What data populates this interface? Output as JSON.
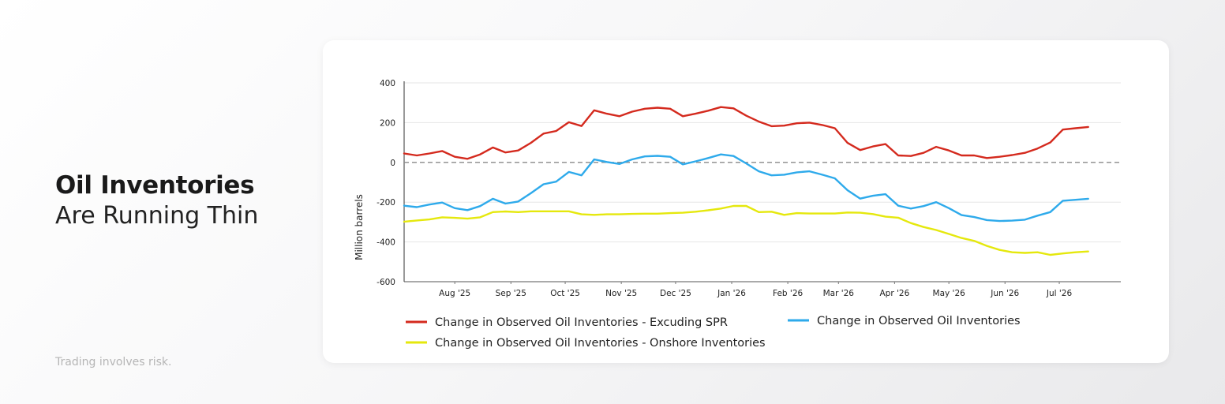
{
  "headline": {
    "bold": "Oil Inventories",
    "light": "Are Running Thin"
  },
  "disclaimer": "Trading involves risk.",
  "chart_data": {
    "type": "line",
    "title": "",
    "xlabel": "",
    "ylabel": "Million barrels",
    "ylim": [
      -600,
      400
    ],
    "yticks": [
      400,
      200,
      0,
      -200,
      -400,
      -600
    ],
    "x_range": [
      "2025-07-04",
      "2026-08-04"
    ],
    "xtick_labels": [
      "Aug '25",
      "Sep '25",
      "Oct '25",
      "Nov '25",
      "Dec '25",
      "Jan '26",
      "Feb '26",
      "Mar '26",
      "Apr '26",
      "May '26",
      "Jun '26",
      "Jul '26"
    ],
    "xtick_dates": [
      "2025-08-01",
      "2025-09-01",
      "2025-10-01",
      "2025-11-01",
      "2025-12-01",
      "2026-01-01",
      "2026-02-01",
      "2026-03-01",
      "2026-04-01",
      "2026-05-01",
      "2026-06-01",
      "2026-07-01"
    ],
    "zero_line": true,
    "grid": true,
    "legend_position": "bottom",
    "series": [
      {
        "name": "Change in Observed Oil Inventories - Excuding SPR",
        "color": "#d42a1e",
        "points": [
          [
            "2025-07-04",
            45
          ],
          [
            "2025-07-11",
            35
          ],
          [
            "2025-07-18",
            45
          ],
          [
            "2025-07-25",
            57
          ],
          [
            "2025-08-01",
            28
          ],
          [
            "2025-08-08",
            18
          ],
          [
            "2025-08-15",
            40
          ],
          [
            "2025-08-22",
            75
          ],
          [
            "2025-08-29",
            50
          ],
          [
            "2025-09-05",
            60
          ],
          [
            "2025-09-12",
            98
          ],
          [
            "2025-09-19",
            145
          ],
          [
            "2025-09-26",
            158
          ],
          [
            "2025-10-03",
            202
          ],
          [
            "2025-10-10",
            183
          ],
          [
            "2025-10-17",
            262
          ],
          [
            "2025-10-24",
            245
          ],
          [
            "2025-10-31",
            232
          ],
          [
            "2025-11-07",
            255
          ],
          [
            "2025-11-14",
            270
          ],
          [
            "2025-11-21",
            275
          ],
          [
            "2025-11-28",
            270
          ],
          [
            "2025-12-05",
            232
          ],
          [
            "2025-12-12",
            245
          ],
          [
            "2025-12-19",
            260
          ],
          [
            "2025-12-26",
            278
          ],
          [
            "2026-01-02",
            272
          ],
          [
            "2026-01-09",
            235
          ],
          [
            "2026-01-16",
            205
          ],
          [
            "2026-01-23",
            182
          ],
          [
            "2026-01-30",
            185
          ],
          [
            "2026-02-06",
            197
          ],
          [
            "2026-02-13",
            200
          ],
          [
            "2026-02-20",
            188
          ],
          [
            "2026-02-27",
            172
          ],
          [
            "2026-03-06",
            98
          ],
          [
            "2026-03-13",
            62
          ],
          [
            "2026-03-20",
            80
          ],
          [
            "2026-03-27",
            92
          ],
          [
            "2026-04-03",
            35
          ],
          [
            "2026-04-10",
            32
          ],
          [
            "2026-04-17",
            48
          ],
          [
            "2026-04-24",
            78
          ],
          [
            "2026-05-01",
            60
          ],
          [
            "2026-05-08",
            35
          ],
          [
            "2026-05-15",
            35
          ],
          [
            "2026-05-22",
            22
          ],
          [
            "2026-05-29",
            28
          ],
          [
            "2026-06-05",
            37
          ],
          [
            "2026-06-12",
            48
          ],
          [
            "2026-06-19",
            70
          ],
          [
            "2026-06-26",
            100
          ],
          [
            "2026-07-03",
            165
          ],
          [
            "2026-07-10",
            172
          ],
          [
            "2026-07-17",
            178
          ]
        ]
      },
      {
        "name": "Change in Observed Oil Inventories",
        "color": "#2eaaeb",
        "points": [
          [
            "2025-07-04",
            -218
          ],
          [
            "2025-07-11",
            -225
          ],
          [
            "2025-07-18",
            -212
          ],
          [
            "2025-07-25",
            -202
          ],
          [
            "2025-08-01",
            -230
          ],
          [
            "2025-08-08",
            -240
          ],
          [
            "2025-08-15",
            -220
          ],
          [
            "2025-08-22",
            -183
          ],
          [
            "2025-08-29",
            -207
          ],
          [
            "2025-09-05",
            -197
          ],
          [
            "2025-09-12",
            -155
          ],
          [
            "2025-09-19",
            -110
          ],
          [
            "2025-09-26",
            -97
          ],
          [
            "2025-10-03",
            -48
          ],
          [
            "2025-10-10",
            -65
          ],
          [
            "2025-10-17",
            15
          ],
          [
            "2025-10-24",
            2
          ],
          [
            "2025-10-31",
            -8
          ],
          [
            "2025-11-07",
            15
          ],
          [
            "2025-11-14",
            30
          ],
          [
            "2025-11-21",
            33
          ],
          [
            "2025-11-28",
            28
          ],
          [
            "2025-12-05",
            -10
          ],
          [
            "2025-12-12",
            5
          ],
          [
            "2025-12-19",
            22
          ],
          [
            "2025-12-26",
            40
          ],
          [
            "2026-01-02",
            32
          ],
          [
            "2026-01-09",
            -5
          ],
          [
            "2026-01-16",
            -45
          ],
          [
            "2026-01-23",
            -65
          ],
          [
            "2026-01-30",
            -62
          ],
          [
            "2026-02-06",
            -50
          ],
          [
            "2026-02-13",
            -45
          ],
          [
            "2026-02-20",
            -62
          ],
          [
            "2026-02-27",
            -80
          ],
          [
            "2026-03-06",
            -140
          ],
          [
            "2026-03-13",
            -182
          ],
          [
            "2026-03-20",
            -168
          ],
          [
            "2026-03-27",
            -160
          ],
          [
            "2026-04-03",
            -218
          ],
          [
            "2026-04-10",
            -232
          ],
          [
            "2026-04-17",
            -220
          ],
          [
            "2026-04-24",
            -200
          ],
          [
            "2026-05-01",
            -230
          ],
          [
            "2026-05-08",
            -265
          ],
          [
            "2026-05-15",
            -275
          ],
          [
            "2026-05-22",
            -290
          ],
          [
            "2026-05-29",
            -295
          ],
          [
            "2026-06-05",
            -293
          ],
          [
            "2026-06-12",
            -288
          ],
          [
            "2026-06-19",
            -268
          ],
          [
            "2026-06-26",
            -250
          ],
          [
            "2026-07-03",
            -193
          ],
          [
            "2026-07-10",
            -188
          ],
          [
            "2026-07-17",
            -183
          ]
        ]
      },
      {
        "name": "Change in Observed Oil Inventories - Onshore Inventories",
        "color": "#e5e80d",
        "points": [
          [
            "2025-07-04",
            -298
          ],
          [
            "2025-07-11",
            -292
          ],
          [
            "2025-07-18",
            -287
          ],
          [
            "2025-07-25",
            -276
          ],
          [
            "2025-08-01",
            -279
          ],
          [
            "2025-08-08",
            -283
          ],
          [
            "2025-08-15",
            -276
          ],
          [
            "2025-08-22",
            -250
          ],
          [
            "2025-08-29",
            -247
          ],
          [
            "2025-09-05",
            -250
          ],
          [
            "2025-09-12",
            -246
          ],
          [
            "2025-09-19",
            -246
          ],
          [
            "2025-09-26",
            -246
          ],
          [
            "2025-10-03",
            -246
          ],
          [
            "2025-10-10",
            -261
          ],
          [
            "2025-10-17",
            -264
          ],
          [
            "2025-10-24",
            -261
          ],
          [
            "2025-10-31",
            -261
          ],
          [
            "2025-11-07",
            -259
          ],
          [
            "2025-11-14",
            -258
          ],
          [
            "2025-11-21",
            -258
          ],
          [
            "2025-11-28",
            -255
          ],
          [
            "2025-12-05",
            -253
          ],
          [
            "2025-12-12",
            -248
          ],
          [
            "2025-12-19",
            -241
          ],
          [
            "2025-12-26",
            -232
          ],
          [
            "2026-01-02",
            -219
          ],
          [
            "2026-01-09",
            -219
          ],
          [
            "2026-01-16",
            -250
          ],
          [
            "2026-01-23",
            -248
          ],
          [
            "2026-01-30",
            -264
          ],
          [
            "2026-02-06",
            -255
          ],
          [
            "2026-02-13",
            -257
          ],
          [
            "2026-02-20",
            -257
          ],
          [
            "2026-02-27",
            -257
          ],
          [
            "2026-03-06",
            -252
          ],
          [
            "2026-03-13",
            -253
          ],
          [
            "2026-03-20",
            -260
          ],
          [
            "2026-03-27",
            -273
          ],
          [
            "2026-04-03",
            -278
          ],
          [
            "2026-04-10",
            -305
          ],
          [
            "2026-04-17",
            -325
          ],
          [
            "2026-04-24",
            -340
          ],
          [
            "2026-05-01",
            -360
          ],
          [
            "2026-05-08",
            -380
          ],
          [
            "2026-05-15",
            -395
          ],
          [
            "2026-05-22",
            -420
          ],
          [
            "2026-05-29",
            -440
          ],
          [
            "2026-06-05",
            -452
          ],
          [
            "2026-06-12",
            -455
          ],
          [
            "2026-06-19",
            -452
          ],
          [
            "2026-06-26",
            -465
          ],
          [
            "2026-07-03",
            -458
          ],
          [
            "2026-07-10",
            -452
          ],
          [
            "2026-07-17",
            -448
          ]
        ]
      }
    ]
  }
}
